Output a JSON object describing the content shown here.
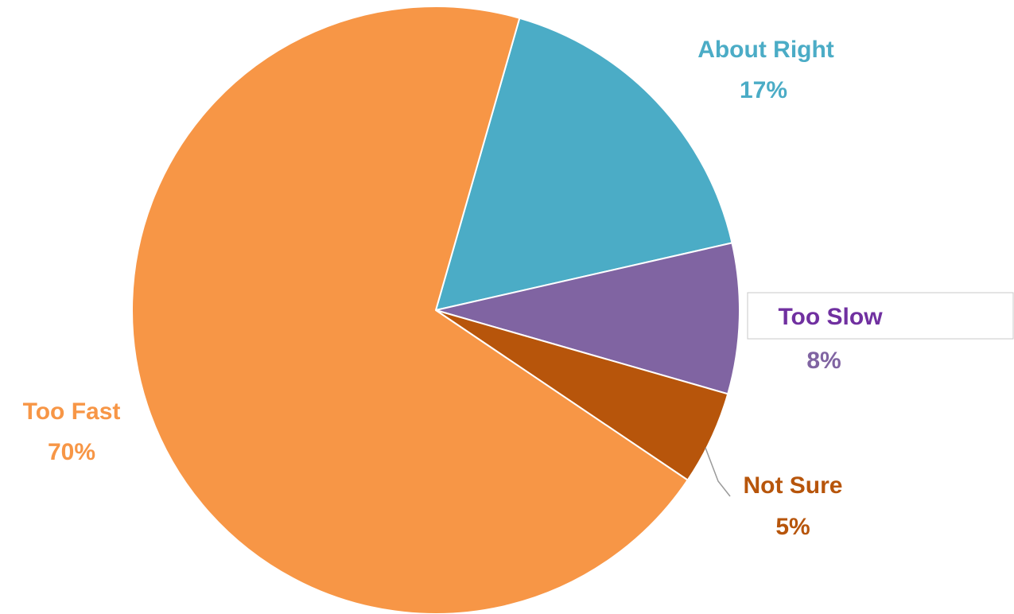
{
  "chart_data": {
    "type": "pie",
    "slices": [
      {
        "name": "About Right",
        "value": 17,
        "value_label": "17%",
        "color": "#4BACC6"
      },
      {
        "name": "Too Slow",
        "value": 8,
        "value_label": "8%",
        "color": "#8064A2"
      },
      {
        "name": "Not Sure",
        "value": 5,
        "value_label": "5%",
        "color": "#B7550B"
      },
      {
        "name": "Too Fast",
        "value": 70,
        "value_label": "70%",
        "color": "#F79646"
      }
    ],
    "title": "",
    "start_angle_deg": 16,
    "legend": "none",
    "data_labels": "outside"
  }
}
